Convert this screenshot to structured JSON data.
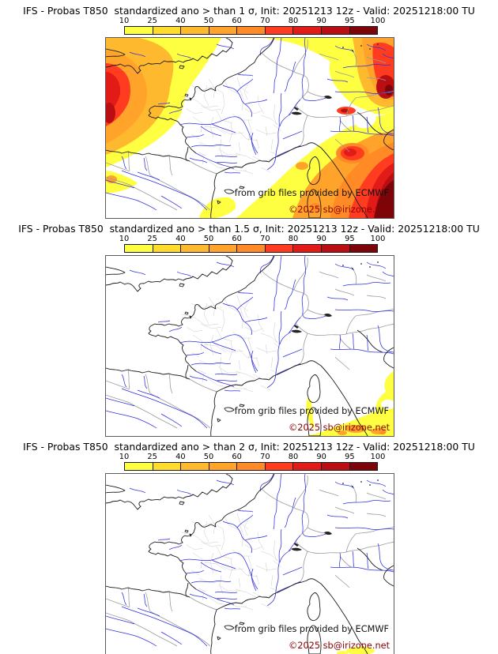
{
  "palette": {
    "ticks": [
      "10",
      "25",
      "40",
      "50",
      "60",
      "70",
      "80",
      "90",
      "95",
      "100"
    ],
    "colors": [
      "#ffff42",
      "#ffdb2c",
      "#ffb92e",
      "#ffa32b",
      "#ff8a26",
      "#ff3c20",
      "#e31b18",
      "#bb0e12",
      "#7d050a"
    ],
    "bar_border": "#1a1a1a"
  },
  "map": {
    "credit": "from grib files provided by ECMWF",
    "copyright": "©2025 sb@irizone.net",
    "credit_color": "#101010",
    "copyright_color": "#8b0000",
    "line_colors": {
      "coast": "#1a1a1a",
      "country_border": "#9a9a9a",
      "department": "#cbcbcb",
      "river": "#2e2ee0"
    }
  },
  "panels": [
    {
      "title": "IFS - Probas T850  standardized ano > than 1 σ, Init: 20251213 12z - Valid: 20251218:00 TU",
      "threshold": "1 σ",
      "shading": "high probabilities over NW Atlantic/SW England, E Germany edge, Alps and NW Italy, dark red maxima far west and bottom-right corner; France interior white"
    },
    {
      "title": "IFS - Probas T850  standardized ano > than 1.5 σ, Init: 20251213 12z - Valid: 20251218:00 TU",
      "threshold": "1.5 σ",
      "shading": "mostly white; yellow patch with small orange spots in bottom-right corner near Italian coast and along Sardinia west coast"
    },
    {
      "title": "IFS - Probas T850  standardized ano > than 2 σ, Init: 20251213 12z - Valid: 20251218:00 TU",
      "threshold": "2 σ",
      "shading": "white everywhere except a tiny yellow smudge at the bottom-right edge"
    }
  ]
}
